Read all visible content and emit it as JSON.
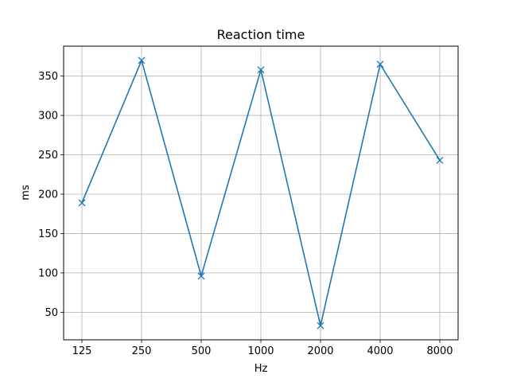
{
  "chart_data": {
    "type": "line",
    "title": "Reaction time",
    "xlabel": "Hz",
    "ylabel": "ms",
    "categories": [
      "125",
      "250",
      "500",
      "1000",
      "2000",
      "4000",
      "8000"
    ],
    "series": [
      {
        "values": [
          189,
          370,
          96,
          358,
          33,
          365,
          243
        ],
        "color": "#1f77b4",
        "marker": "x"
      }
    ],
    "ylim": [
      15,
      388
    ],
    "yticks": [
      50,
      100,
      150,
      200,
      250,
      300,
      350
    ],
    "grid": true
  }
}
